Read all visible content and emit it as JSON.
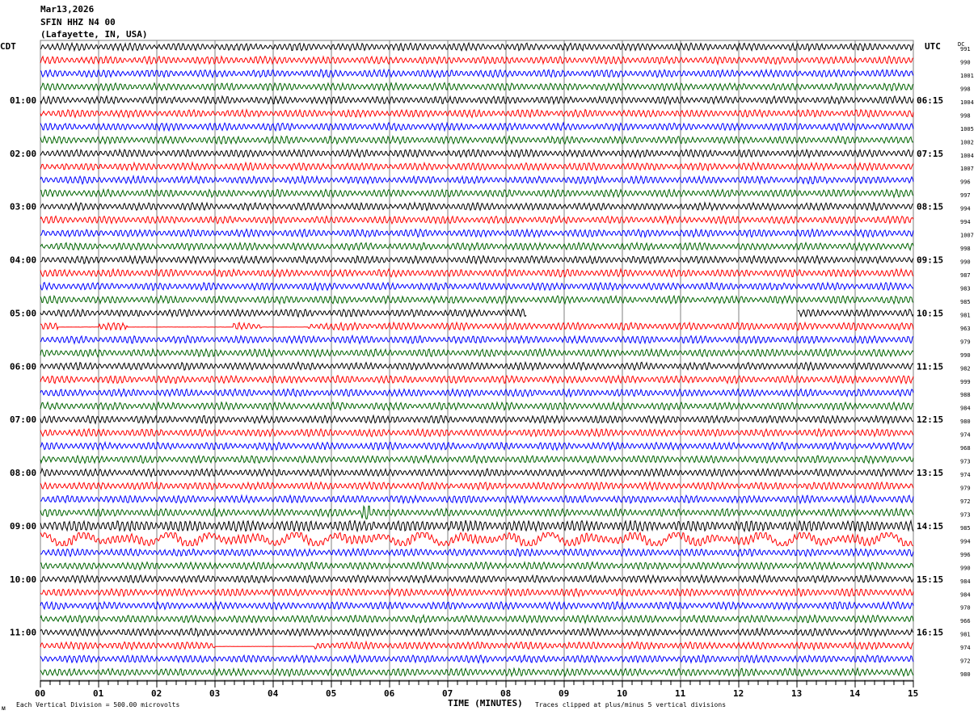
{
  "header": {
    "date": "Mar13,2026",
    "station": "SFIN HHZ N4 00",
    "location": "(Lafayette, IN, USA)"
  },
  "left_axis_title": "CDT",
  "right_axis_title": "UTC",
  "dc_title": "DC",
  "footer": {
    "scale_note": "Each Vertical Division =  500.00 microvolts",
    "clip_note": "Traces clipped at plus/minus 5 vertical divisions",
    "corner_mark": "ᴍ"
  },
  "chart_data": {
    "type": "line",
    "xlabel": "TIME (MINUTES)",
    "xlim": [
      0,
      15
    ],
    "x_ticks": [
      "00",
      "01",
      "02",
      "03",
      "04",
      "05",
      "06",
      "07",
      "08",
      "09",
      "10",
      "11",
      "12",
      "13",
      "14",
      "15"
    ],
    "left_time_labels": [
      "01:00",
      "02:00",
      "03:00",
      "04:00",
      "05:00",
      "06:00",
      "07:00",
      "08:00",
      "09:00",
      "10:00",
      "11:00"
    ],
    "right_time_labels": [
      "06:15",
      "07:15",
      "08:15",
      "09:15",
      "10:15",
      "11:15",
      "12:15",
      "13:15",
      "14:15",
      "15:15",
      "16:15"
    ],
    "trace_colors": [
      "#000000",
      "#ff0000",
      "#0000ff",
      "#006400"
    ],
    "dc_offsets": [
      991,
      990,
      1001,
      998,
      1004,
      998,
      1005,
      1002,
      1004,
      1007,
      996,
      997,
      994,
      994,
      1007,
      998,
      990,
      987,
      983,
      985,
      981,
      963,
      979,
      990,
      982,
      999,
      988,
      984,
      980,
      974,
      968,
      973,
      974,
      979,
      972,
      973,
      985,
      994,
      996,
      990,
      984,
      984,
      970,
      966,
      981,
      974,
      972,
      980
    ],
    "gaps": [
      {
        "trace": 20,
        "minutes": [
          8.35,
          13.0
        ]
      }
    ],
    "flat_segments": [
      {
        "trace": 21,
        "minutes": [
          0.3,
          1.0
        ]
      },
      {
        "trace": 21,
        "minutes": [
          1.5,
          3.3
        ]
      },
      {
        "trace": 21,
        "minutes": [
          3.8,
          4.6
        ]
      },
      {
        "trace": 45,
        "minutes": [
          3.0,
          4.7
        ]
      }
    ],
    "events": [
      {
        "trace": 35,
        "minute": 5.6
      },
      {
        "trace": 37,
        "minutes": [
          0,
          15
        ]
      }
    ]
  }
}
